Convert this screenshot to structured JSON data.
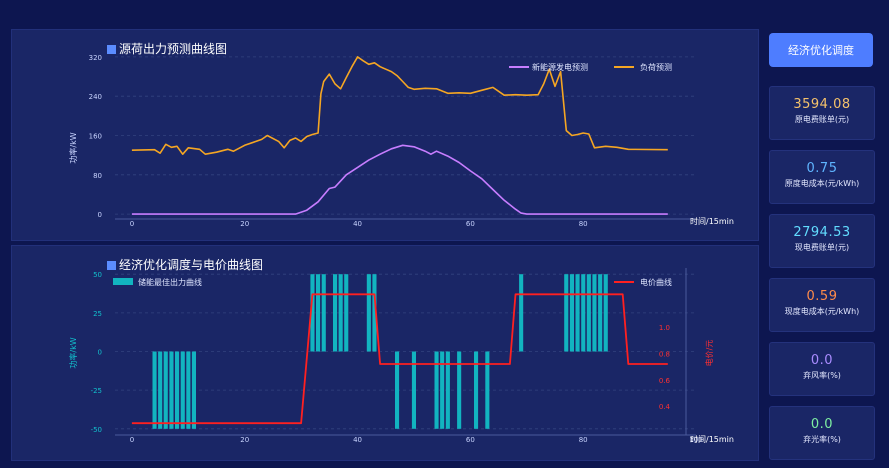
{
  "chart1": {
    "title": "源荷出力预测曲线图",
    "ylabel": "功率/kW",
    "xlabel": "时间/15min",
    "legend": [
      "新能源发电预测",
      "负荷预测"
    ]
  },
  "chart2": {
    "title": "经济优化调度与电价曲线图",
    "ylabel": "功率/kW",
    "y2label": "电价/元",
    "xlabel": "时间/15min",
    "legend": [
      "储能最佳出力曲线",
      "电价曲线"
    ]
  },
  "sidebar": {
    "button_label": "经济优化调度",
    "cards": [
      {
        "value": "3594.08",
        "label": "原电费账单(元)",
        "color": "#f5c26b"
      },
      {
        "value": "0.75",
        "label": "原度电成本(元/kWh)",
        "color": "#5fb4ff"
      },
      {
        "value": "2794.53",
        "label": "现电费账单(元)",
        "color": "#62dcff"
      },
      {
        "value": "0.59",
        "label": "现度电成本(元/kWh)",
        "color": "#ff8b4a"
      },
      {
        "value": "0.0",
        "label": "弃风率(%)",
        "color": "#a98bff"
      },
      {
        "value": "0.0",
        "label": "弃光率(%)",
        "color": "#7ef0a2"
      }
    ]
  },
  "chart_data": [
    {
      "type": "line",
      "title": "源荷出力预测曲线图",
      "xlabel": "时间/15min",
      "ylabel": "功率/kW",
      "xlim": [
        -3,
        100
      ],
      "ylim": [
        -10,
        330
      ],
      "xticks": [
        0,
        20,
        40,
        60,
        80
      ],
      "yticks": [
        0,
        80,
        160,
        240,
        320
      ],
      "grid": true,
      "legend_position": "top-right",
      "series": [
        {
          "name": "新能源发电预测",
          "color": "#c77dff",
          "points": [
            [
              0,
              0
            ],
            [
              29,
              0
            ],
            [
              31,
              8
            ],
            [
              33,
              25
            ],
            [
              35,
              52
            ],
            [
              36,
              55
            ],
            [
              38,
              80
            ],
            [
              40,
              95
            ],
            [
              42,
              110
            ],
            [
              44,
              122
            ],
            [
              46,
              133
            ],
            [
              48,
              140
            ],
            [
              50,
              137
            ],
            [
              52,
              128
            ],
            [
              53,
              122
            ],
            [
              54,
              128
            ],
            [
              56,
              118
            ],
            [
              58,
              105
            ],
            [
              60,
              88
            ],
            [
              62,
              72
            ],
            [
              64,
              50
            ],
            [
              66,
              28
            ],
            [
              68,
              10
            ],
            [
              69,
              2
            ],
            [
              70,
              0
            ],
            [
              95,
              0
            ]
          ]
        },
        {
          "name": "负荷预测",
          "color": "#f5a623",
          "points": [
            [
              0,
              130
            ],
            [
              4,
              131
            ],
            [
              5,
              124
            ],
            [
              6,
              142
            ],
            [
              7,
              136
            ],
            [
              8,
              138
            ],
            [
              9,
              122
            ],
            [
              10,
              135
            ],
            [
              12,
              132
            ],
            [
              13,
              122
            ],
            [
              15,
              126
            ],
            [
              17,
              132
            ],
            [
              18,
              128
            ],
            [
              20,
              140
            ],
            [
              22,
              148
            ],
            [
              23,
              152
            ],
            [
              24,
              160
            ],
            [
              26,
              148
            ],
            [
              27,
              135
            ],
            [
              28,
              150
            ],
            [
              29,
              155
            ],
            [
              30,
              148
            ],
            [
              31,
              158
            ],
            [
              32,
              162
            ],
            [
              33,
              165
            ],
            [
              33.5,
              245
            ],
            [
              34,
              270
            ],
            [
              35,
              285
            ],
            [
              36,
              265
            ],
            [
              37,
              255
            ],
            [
              38,
              278
            ],
            [
              39,
              300
            ],
            [
              40,
              320
            ],
            [
              41,
              312
            ],
            [
              42,
              305
            ],
            [
              43,
              308
            ],
            [
              44,
              300
            ],
            [
              45,
              295
            ],
            [
              46,
              290
            ],
            [
              47,
              282
            ],
            [
              48,
              270
            ],
            [
              49,
              258
            ],
            [
              50,
              254
            ],
            [
              52,
              256
            ],
            [
              54,
              255
            ],
            [
              56,
              246
            ],
            [
              58,
              247
            ],
            [
              60,
              246
            ],
            [
              62,
              252
            ],
            [
              64,
              258
            ],
            [
              66,
              242
            ],
            [
              68,
              243
            ],
            [
              70,
              242
            ],
            [
              72,
              243
            ],
            [
              73,
              265
            ],
            [
              74,
              295
            ],
            [
              75,
              260
            ],
            [
              76,
              290
            ],
            [
              77,
              170
            ],
            [
              78,
              160
            ],
            [
              79,
              162
            ],
            [
              80,
              165
            ],
            [
              81,
              163
            ],
            [
              82,
              135
            ],
            [
              84,
              138
            ],
            [
              86,
              136
            ],
            [
              88,
              132
            ],
            [
              95,
              131
            ]
          ]
        }
      ]
    },
    {
      "type": "bar",
      "title": "经济优化调度与电价曲线图",
      "xlabel": "时间/15min",
      "ylabel": "功率/kW",
      "y2label": "电价/元",
      "xlim": [
        -3,
        100
      ],
      "ylim": [
        -54,
        54
      ],
      "y2lim": [
        0.18,
        1.45
      ],
      "xticks": [
        0,
        20,
        40,
        60,
        80,
        100
      ],
      "yticks": [
        50,
        25,
        0,
        -25,
        -50
      ],
      "y2ticks": [
        0.4,
        0.6,
        0.8,
        1.0
      ],
      "grid": true,
      "legend_position": "top",
      "series": [
        {
          "name": "储能最佳出力曲线",
          "color": "#12b4c0",
          "bars": [
            [
              4,
              -50
            ],
            [
              5,
              -50
            ],
            [
              6,
              -50
            ],
            [
              7,
              -50
            ],
            [
              8,
              -50
            ],
            [
              9,
              -50
            ],
            [
              10,
              -50
            ],
            [
              11,
              -50
            ],
            [
              32,
              50
            ],
            [
              33,
              50
            ],
            [
              34,
              50
            ],
            [
              36,
              50
            ],
            [
              37,
              50
            ],
            [
              38,
              50
            ],
            [
              42,
              50
            ],
            [
              43,
              50
            ],
            [
              47,
              -50
            ],
            [
              50,
              -50
            ],
            [
              54,
              -50
            ],
            [
              55,
              -50
            ],
            [
              56,
              -50
            ],
            [
              58,
              -50
            ],
            [
              61,
              -50
            ],
            [
              63,
              -50
            ],
            [
              69,
              50
            ],
            [
              77,
              50
            ],
            [
              78,
              50
            ],
            [
              79,
              50
            ],
            [
              80,
              50
            ],
            [
              81,
              50
            ],
            [
              82,
              50
            ],
            [
              83,
              50
            ],
            [
              84,
              50
            ]
          ]
        },
        {
          "name": "电价曲线",
          "color": "#ff2020",
          "points": [
            [
              0,
              0.27
            ],
            [
              30,
              0.27
            ],
            [
              32,
              1.25
            ],
            [
              43,
              1.25
            ],
            [
              44,
              0.72
            ],
            [
              67,
              0.72
            ],
            [
              68,
              1.25
            ],
            [
              87,
              1.25
            ],
            [
              88,
              0.72
            ],
            [
              95,
              0.72
            ]
          ]
        }
      ]
    }
  ]
}
